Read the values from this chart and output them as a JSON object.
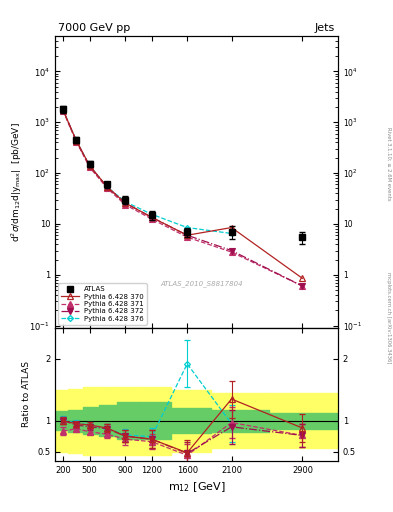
{
  "title_left": "7000 GeV pp",
  "title_right": "Jets",
  "ylabel_main": "d$^2\\sigma$/dm$_{12}$d|y$_{\\rm max}$|  [pb/GeV]",
  "ylabel_ratio": "Ratio to ATLAS",
  "xlabel": "m$_{12}$ [GeV]",
  "watermark": "ATLAS_2010_S8817804",
  "rivet_label": "Rivet 3.1.10; ≥ 2.6M events",
  "mcplots_label": "mcplots.cern.ch [arXiv:1306.3436]",
  "atlas_x": [
    200,
    350,
    500,
    700,
    900,
    1200,
    1600,
    2100,
    2900
  ],
  "atlas_y": [
    1800,
    450,
    150,
    60,
    30,
    15,
    7.0,
    7.0,
    5.5
  ],
  "atlas_yerr_lo": [
    300,
    60,
    20,
    8,
    5,
    3,
    1.5,
    2.0,
    1.5
  ],
  "atlas_yerr_hi": [
    300,
    60,
    20,
    8,
    5,
    3,
    1.5,
    2.0,
    1.5
  ],
  "mc_x": [
    200,
    350,
    500,
    700,
    900,
    1200,
    1600,
    2100,
    2900
  ],
  "py370_y": [
    1750,
    435,
    140,
    53,
    26,
    13.5,
    6.0,
    8.5,
    0.85
  ],
  "py371_y": [
    1680,
    415,
    130,
    50,
    24,
    12.5,
    5.5,
    2.8,
    0.6
  ],
  "py372_y": [
    1750,
    430,
    138,
    53,
    26,
    13.5,
    6.0,
    3.0,
    0.6
  ],
  "py376_y": [
    1750,
    435,
    140,
    53,
    27.5,
    15.5,
    8.5,
    6.5,
    null
  ],
  "ratio_x": [
    200,
    350,
    500,
    700,
    900,
    1200,
    1600,
    2100,
    2900
  ],
  "ratio370_y": [
    1.0,
    0.95,
    0.93,
    0.88,
    0.75,
    0.7,
    0.48,
    1.35,
    0.88
  ],
  "ratio371_y": [
    0.83,
    0.87,
    0.82,
    0.78,
    0.7,
    0.66,
    0.44,
    0.97,
    0.76
  ],
  "ratio372_y": [
    1.0,
    0.93,
    0.9,
    0.87,
    0.75,
    0.7,
    0.47,
    0.9,
    0.76
  ],
  "ratio376_y": [
    1.02,
    0.96,
    0.93,
    0.87,
    0.77,
    0.74,
    1.92,
    0.95,
    null
  ],
  "ratio370_yerr": [
    0.06,
    0.05,
    0.05,
    0.07,
    0.1,
    0.15,
    0.2,
    0.3,
    0.22
  ],
  "ratio371_yerr": [
    0.06,
    0.04,
    0.04,
    0.06,
    0.09,
    0.12,
    0.18,
    0.25,
    0.18
  ],
  "ratio372_yerr": [
    0.06,
    0.05,
    0.05,
    0.07,
    0.1,
    0.15,
    0.19,
    0.28,
    0.18
  ],
  "ratio376_yerr": [
    0.06,
    0.05,
    0.05,
    0.07,
    0.1,
    0.14,
    0.38,
    0.3,
    null
  ],
  "band_x_edges": [
    110,
    260,
    430,
    610,
    810,
    1060,
    1420,
    1870,
    2520,
    3300
  ],
  "band_yellow_lo": [
    0.5,
    0.48,
    0.45,
    0.45,
    0.45,
    0.45,
    0.5,
    0.55,
    0.55
  ],
  "band_yellow_hi": [
    1.5,
    1.52,
    1.55,
    1.55,
    1.55,
    1.55,
    1.5,
    1.45,
    1.45
  ],
  "band_green_lo": [
    0.85,
    0.82,
    0.78,
    0.75,
    0.7,
    0.7,
    0.8,
    0.82,
    0.87
  ],
  "band_green_hi": [
    1.15,
    1.18,
    1.22,
    1.25,
    1.3,
    1.3,
    1.2,
    1.18,
    1.13
  ],
  "color_370": "#b22222",
  "color_371": "#c0306a",
  "color_372": "#a01050",
  "color_376": "#00ced1",
  "ylim_main": [
    0.09,
    50000
  ],
  "ylim_ratio": [
    0.35,
    2.5
  ],
  "xlim": [
    110,
    3300
  ]
}
